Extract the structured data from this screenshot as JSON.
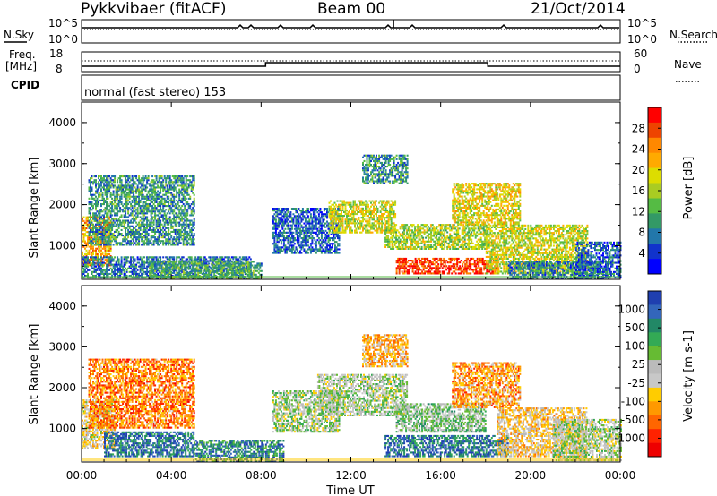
{
  "header": {
    "station": "Pykkvibaer (fitACF)",
    "beam": "Beam 00",
    "date": "21/Oct/2014"
  },
  "left_labels": {
    "nsky": "N.Sky",
    "freq": "Freq.",
    "freq_unit": "[MHz]",
    "cpid": "CPID"
  },
  "right_labels": {
    "nsearch": "N.Search",
    "nave": "Nave"
  },
  "noise_axis": {
    "top": "10^5",
    "bottom": "10^0"
  },
  "freq_axis": {
    "top": "18",
    "bottom": "8"
  },
  "nave_axis": {
    "top": "60",
    "bottom": "0"
  },
  "cpid_text": "normal (fast stereo) 153",
  "chart_data": [
    {
      "type": "heatmap",
      "quantity": "Power",
      "ylabel": "Slant Range [km]",
      "yticks": [
        "4000",
        "3000",
        "2000",
        "1000"
      ],
      "ylim": [
        180,
        4500
      ],
      "colorbar_label": "Power [dB]",
      "colorbar_ticks": [
        "28",
        "24",
        "20",
        "16",
        "12",
        "8",
        "4"
      ],
      "colorbar_colors": [
        "#ff0000",
        "#ee4400",
        "#ff8800",
        "#ffaa00",
        "#dddd00",
        "#aacc22",
        "#55bb44",
        "#339966",
        "#2277aa",
        "#1133cc",
        "#0000ff"
      ],
      "regions": [
        {
          "t0": 0.0,
          "t1": 1.3,
          "r0": 500,
          "r1": 1700,
          "level": 0.72
        },
        {
          "t0": 0.3,
          "t1": 5.0,
          "r0": 1000,
          "r1": 2700,
          "level": 0.3
        },
        {
          "t0": 0.0,
          "t1": 7.5,
          "r0": 200,
          "r1": 700,
          "level": 0.25
        },
        {
          "t0": 3.0,
          "t1": 8.0,
          "r0": 180,
          "r1": 600,
          "level": 0.35
        },
        {
          "t0": 8.5,
          "t1": 11.5,
          "r0": 800,
          "r1": 1900,
          "level": 0.2
        },
        {
          "t0": 11.0,
          "t1": 14.0,
          "r0": 1300,
          "r1": 2100,
          "level": 0.55
        },
        {
          "t0": 12.5,
          "t1": 14.5,
          "r0": 2500,
          "r1": 3200,
          "level": 0.3
        },
        {
          "t0": 14.0,
          "t1": 18.5,
          "r0": 300,
          "r1": 700,
          "level": 0.9
        },
        {
          "t0": 13.5,
          "t1": 18.0,
          "r0": 900,
          "r1": 1500,
          "level": 0.5
        },
        {
          "t0": 16.5,
          "t1": 19.5,
          "r0": 1500,
          "r1": 2500,
          "level": 0.6
        },
        {
          "t0": 18.0,
          "t1": 22.5,
          "r0": 300,
          "r1": 1500,
          "level": 0.55
        },
        {
          "t0": 19.0,
          "t1": 23.5,
          "r0": 180,
          "r1": 600,
          "level": 0.25
        },
        {
          "t0": 22.0,
          "t1": 24.0,
          "r0": 200,
          "r1": 1100,
          "level": 0.2
        }
      ]
    },
    {
      "type": "heatmap",
      "quantity": "Velocity",
      "ylabel": "Slant Range [km]",
      "yticks": [
        "4000",
        "3000",
        "2000",
        "1000"
      ],
      "ylim": [
        180,
        4500
      ],
      "colorbar_label": "Velocity [m s-1]",
      "colorbar_ticks": [
        "1000",
        "500",
        "100",
        "25",
        "-25",
        "-100",
        "-500",
        "-1000"
      ],
      "colorbar_colors": [
        "#1f3fb0",
        "#3366bb",
        "#228866",
        "#33aa55",
        "#66bb33",
        "#bbbbbb",
        "#c8c8c8",
        "#ffcc00",
        "#ff9900",
        "#ff6600",
        "#ff2200",
        "#ee0000"
      ],
      "regions": [
        {
          "t0": 0.0,
          "t1": 1.5,
          "r0": 500,
          "r1": 1700,
          "level": 0.45
        },
        {
          "t0": 0.3,
          "t1": 5.0,
          "r0": 1000,
          "r1": 2700,
          "level": 0.25
        },
        {
          "t0": 1.0,
          "t1": 5.0,
          "r0": 300,
          "r1": 900,
          "level": 0.85
        },
        {
          "t0": 5.0,
          "t1": 9.0,
          "r0": 180,
          "r1": 700,
          "level": 0.8
        },
        {
          "t0": 8.5,
          "t1": 11.5,
          "r0": 900,
          "r1": 1900,
          "level": 0.55
        },
        {
          "t0": 10.5,
          "t1": 14.5,
          "r0": 1300,
          "r1": 2300,
          "level": 0.55
        },
        {
          "t0": 12.5,
          "t1": 14.5,
          "r0": 2500,
          "r1": 3300,
          "level": 0.35
        },
        {
          "t0": 13.5,
          "t1": 19.0,
          "r0": 300,
          "r1": 800,
          "level": 0.85
        },
        {
          "t0": 14.0,
          "t1": 18.0,
          "r0": 900,
          "r1": 1600,
          "level": 0.6
        },
        {
          "t0": 16.5,
          "t1": 19.5,
          "r0": 1500,
          "r1": 2600,
          "level": 0.3
        },
        {
          "t0": 18.5,
          "t1": 22.5,
          "r0": 300,
          "r1": 1500,
          "level": 0.4
        },
        {
          "t0": 21.0,
          "t1": 24.0,
          "r0": 200,
          "r1": 1200,
          "level": 0.55
        }
      ]
    }
  ],
  "time_axis": {
    "ticks": [
      "00:00",
      "04:00",
      "08:00",
      "12:00",
      "16:00",
      "20:00",
      "00:00"
    ],
    "xlabel": "Time UT",
    "xlim": [
      0,
      24
    ]
  }
}
